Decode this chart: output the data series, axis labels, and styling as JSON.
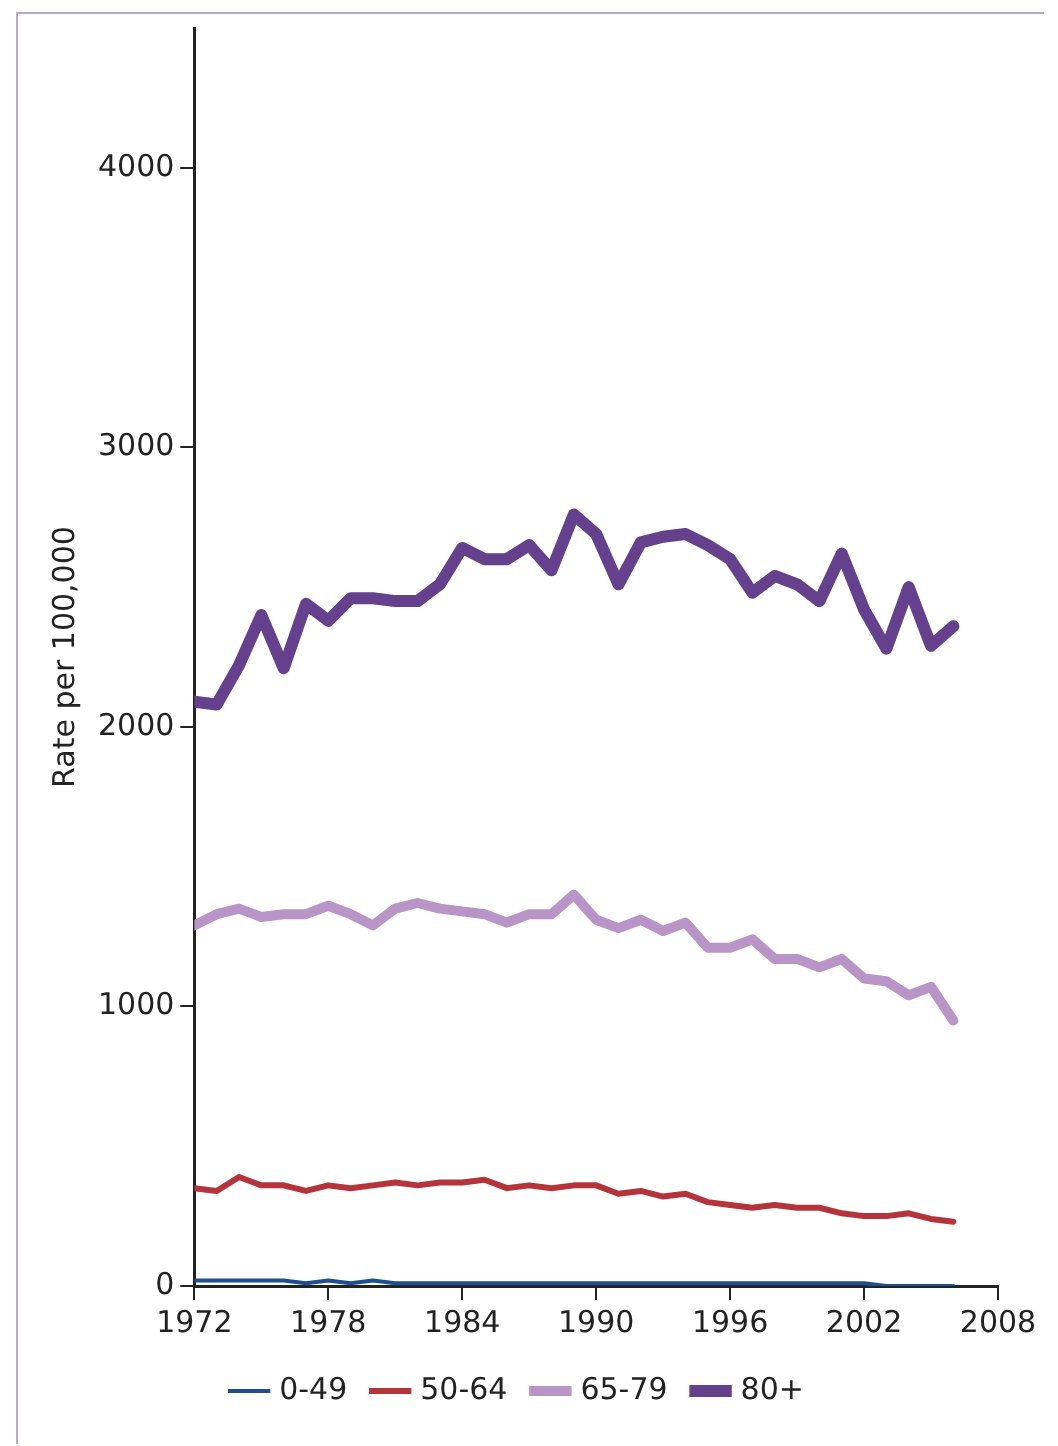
{
  "chart_data": {
    "type": "line",
    "ylabel": "Rate per 100,000",
    "x": [
      1972,
      1973,
      1974,
      1975,
      1976,
      1977,
      1978,
      1979,
      1980,
      1981,
      1982,
      1983,
      1984,
      1985,
      1986,
      1987,
      1988,
      1989,
      1990,
      1991,
      1992,
      1993,
      1994,
      1995,
      1996,
      1997,
      1998,
      1999,
      2000,
      2001,
      2002,
      2003,
      2004,
      2005,
      2006
    ],
    "xlim": [
      1972,
      2008
    ],
    "xticks": [
      1972,
      1978,
      1984,
      1990,
      1996,
      2002,
      2008
    ],
    "ylim": [
      0,
      4500
    ],
    "yticks": [
      0,
      1000,
      2000,
      3000,
      4000
    ],
    "grid": false,
    "legend": "bottom",
    "marker": "none",
    "series": [
      {
        "name": "0-49",
        "color": "#1f4e8c",
        "values": [
          20,
          20,
          20,
          20,
          20,
          10,
          20,
          10,
          20,
          10,
          10,
          10,
          10,
          10,
          10,
          10,
          10,
          10,
          10,
          10,
          10,
          10,
          10,
          10,
          10,
          10,
          10,
          10,
          10,
          10,
          10,
          0,
          0,
          0,
          0
        ]
      },
      {
        "name": "50-64",
        "color": "#b5343c",
        "values": [
          350,
          340,
          390,
          360,
          360,
          340,
          360,
          350,
          360,
          370,
          360,
          370,
          370,
          380,
          350,
          360,
          350,
          360,
          360,
          330,
          340,
          320,
          330,
          300,
          290,
          280,
          290,
          280,
          280,
          260,
          250,
          250,
          260,
          240,
          230
        ]
      },
      {
        "name": "65-79",
        "color": "#b994c7",
        "values": [
          1290,
          1330,
          1350,
          1320,
          1330,
          1330,
          1360,
          1330,
          1290,
          1350,
          1370,
          1350,
          1340,
          1330,
          1300,
          1330,
          1330,
          1400,
          1310,
          1280,
          1310,
          1270,
          1300,
          1210,
          1210,
          1240,
          1170,
          1170,
          1140,
          1170,
          1100,
          1090,
          1040,
          1070,
          950
        ]
      },
      {
        "name": "80+",
        "color": "#65408c",
        "values": [
          2090,
          2080,
          2220,
          2400,
          2210,
          2440,
          2380,
          2460,
          2460,
          2450,
          2450,
          2510,
          2640,
          2600,
          2600,
          2650,
          2560,
          2760,
          2690,
          2510,
          2660,
          2680,
          2690,
          2650,
          2600,
          2480,
          2540,
          2510,
          2450,
          2620,
          2420,
          2280,
          2500,
          2290,
          2360
        ]
      }
    ]
  }
}
